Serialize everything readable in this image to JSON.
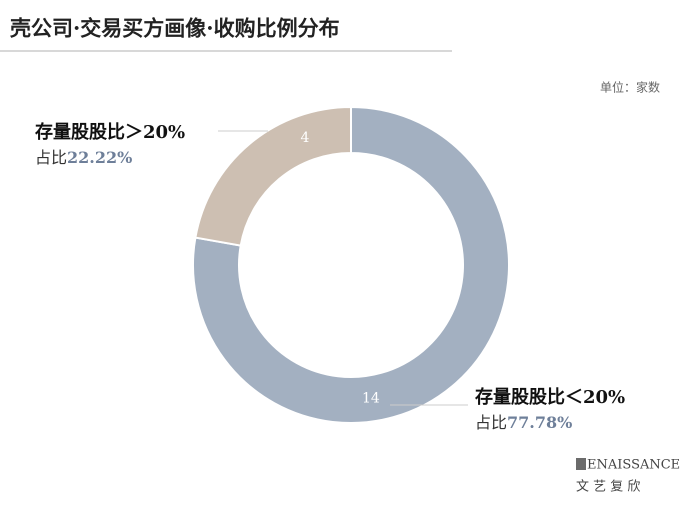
{
  "chart_data": {
    "type": "donut",
    "title": "壳公司·交易买方画像·收购比例分布",
    "unit": "单位：家数",
    "categories": [
      "存量股股比＜20%",
      "存量股股比＞20%"
    ],
    "values": [
      14,
      4
    ],
    "colors": [
      "#a3b0c1",
      "#cdbfb2"
    ],
    "share_prefix": "占比",
    "percent_labels": [
      "77.78%",
      "22.22%"
    ]
  },
  "brand": {
    "name": "ENAISSANCE",
    "name_cn": "文 艺 复 欣"
  }
}
